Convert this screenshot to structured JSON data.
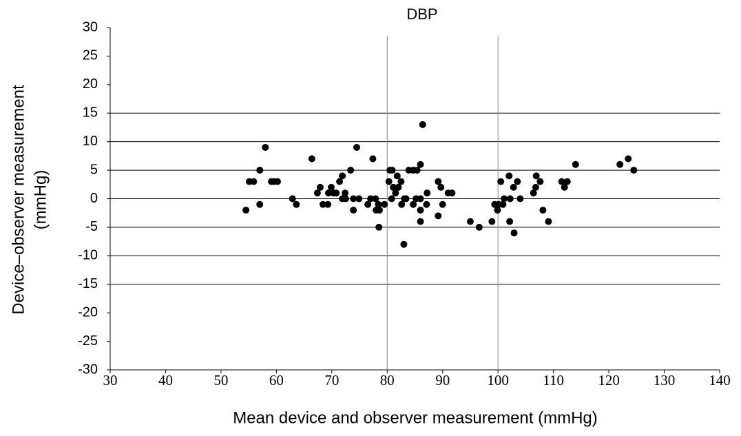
{
  "chart_data": {
    "type": "scatter",
    "title": "DBP",
    "xlabel": "Mean device and observer measurement (mmHg)",
    "ylabel": [
      "Device–observer measurement",
      "(mmHg)"
    ],
    "xlim": [
      30,
      140
    ],
    "ylim": [
      -30,
      30
    ],
    "xticks": [
      30,
      40,
      50,
      60,
      70,
      80,
      90,
      100,
      110,
      120,
      130,
      140
    ],
    "yticks": [
      -30,
      -25,
      -20,
      -15,
      -10,
      -5,
      0,
      5,
      10,
      15,
      20,
      25,
      30
    ],
    "hlines": [
      15,
      10,
      5,
      0,
      -5,
      -10,
      -15
    ],
    "vlines": [
      80,
      100
    ],
    "color": "#000000",
    "x": [
      54.5,
      55.1,
      55.9,
      57.0,
      57.0,
      58.0,
      59.1,
      59.6,
      60.2,
      62.9,
      63.6,
      66.4,
      67.4,
      67.9,
      68.4,
      69.3,
      69.4,
      69.9,
      70.3,
      70.8,
      71.4,
      71.9,
      71.9,
      72.4,
      72.5,
      73.4,
      73.9,
      73.9,
      74.5,
      74.9,
      76.5,
      77.0,
      77.4,
      77.9,
      78.0,
      78.4,
      78.5,
      78.6,
      79.5,
      80.3,
      80.5,
      80.8,
      80.9,
      81.1,
      81.5,
      82.0,
      81.8,
      82.5,
      82.6,
      83.0,
      83.1,
      83.4,
      83.9,
      84.7,
      84.7,
      85.2,
      85.4,
      86.0,
      86.0,
      86.0,
      86.0,
      86.4,
      87.1,
      87.2,
      89.2,
      89.2,
      89.7,
      90.0,
      91.0,
      91.7,
      95.0,
      96.6,
      98.9,
      99.4,
      99.9,
      100.1,
      100.5,
      100.9,
      101.1,
      102.0,
      102.1,
      102.2,
      102.8,
      102.9,
      103.5,
      104.0,
      106.4,
      106.8,
      106.9,
      107.6,
      108.1,
      109.1,
      111.5,
      112.0,
      112.5,
      114.0,
      122.0,
      123.5,
      124.5
    ],
    "values": [
      -2,
      3,
      3,
      5,
      -1,
      9,
      3,
      3,
      3,
      0,
      -1,
      7,
      1,
      2,
      -1,
      -1,
      1,
      2,
      1,
      1,
      3,
      4,
      0,
      1,
      0,
      5,
      -2,
      0,
      9,
      0,
      -1,
      0,
      7,
      0,
      -2,
      -1,
      -5,
      -2,
      -1,
      3,
      5,
      0,
      5,
      2,
      1,
      2,
      4,
      3,
      -1,
      -8,
      0,
      0,
      5,
      5,
      -1,
      0,
      5,
      6,
      -2,
      -4,
      0,
      13,
      -1,
      1,
      3,
      -3,
      2,
      -1,
      1,
      1,
      -4,
      -5,
      -4,
      -1,
      -2,
      -1,
      3,
      -1,
      0,
      4,
      -4,
      0,
      2,
      -6,
      3,
      0,
      1,
      2,
      4,
      3,
      -2,
      -4,
      3,
      2,
      3,
      6,
      6,
      7,
      5
    ]
  }
}
